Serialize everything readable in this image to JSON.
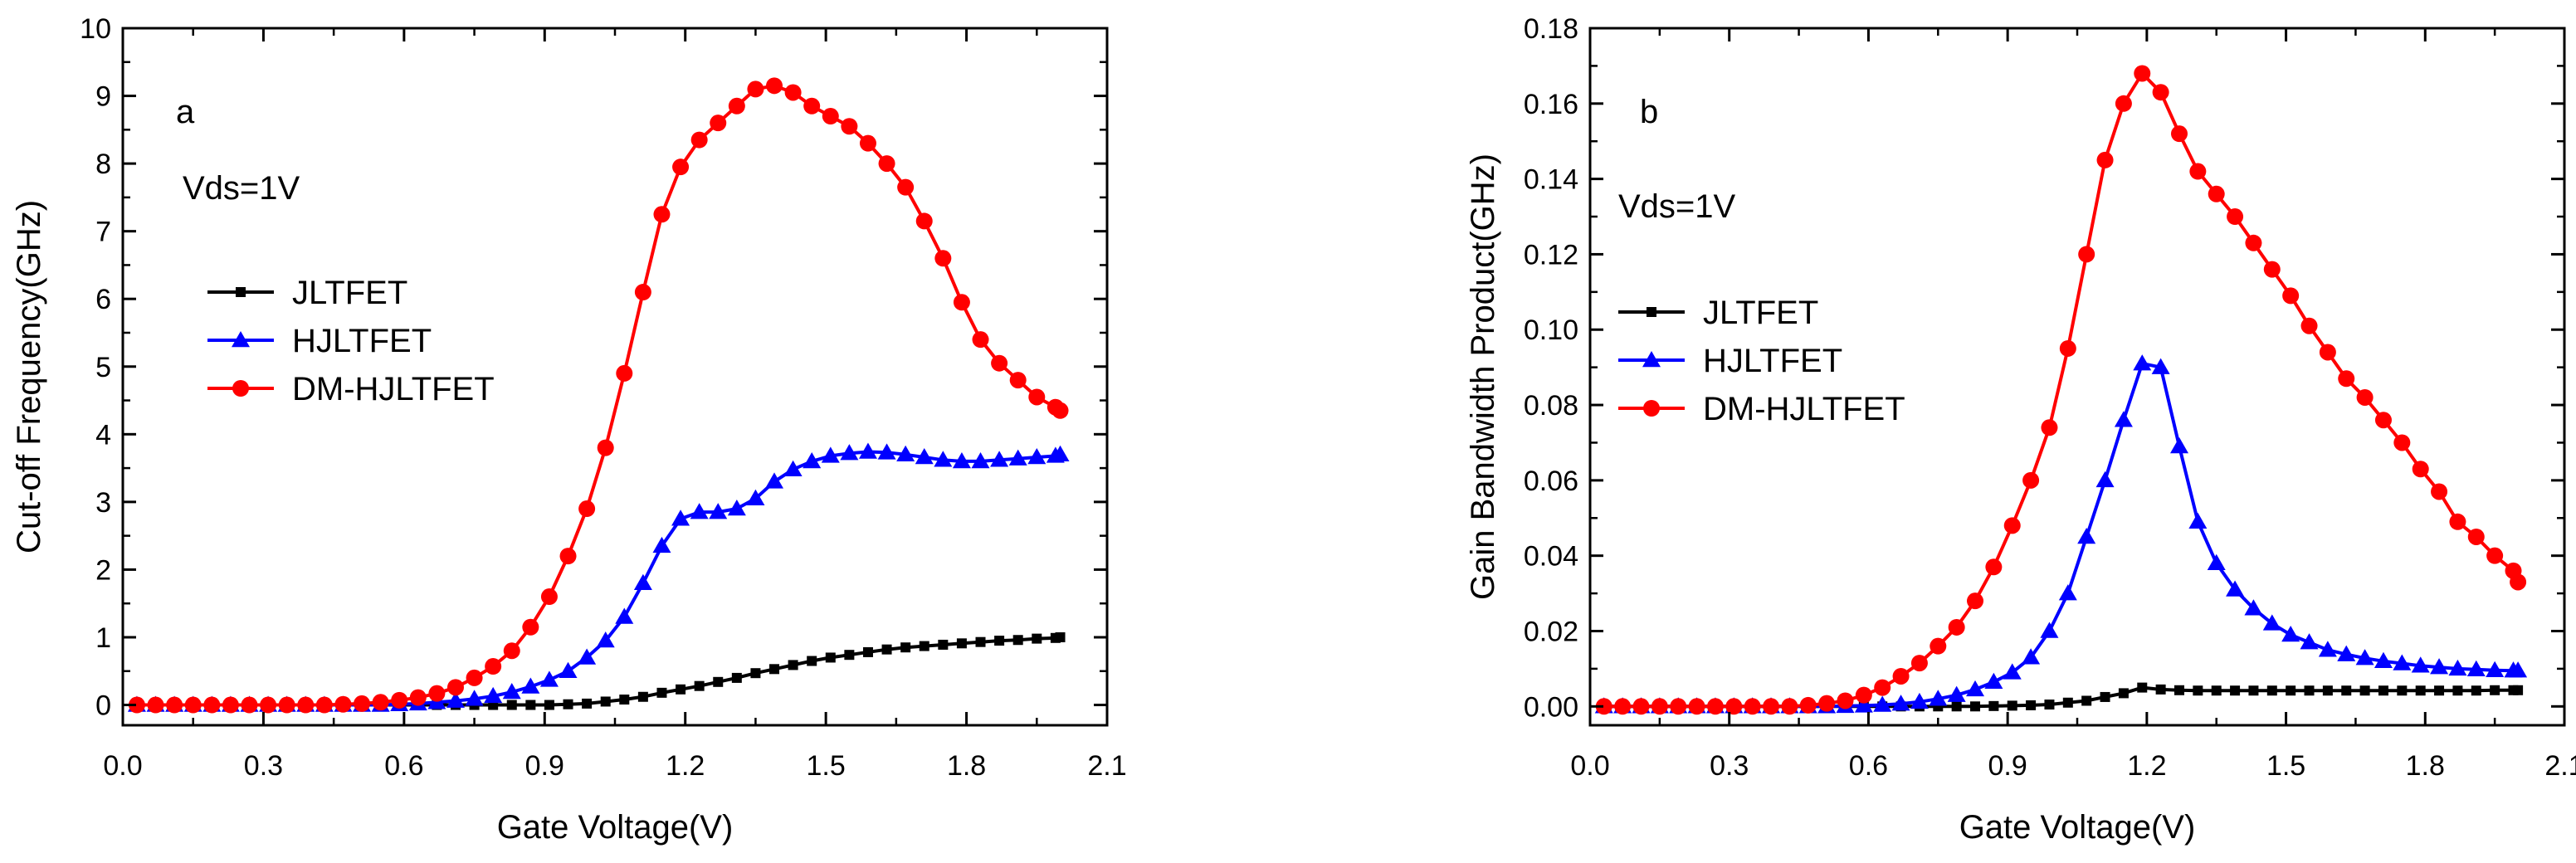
{
  "chart_data": [
    {
      "type": "line",
      "panel_label": "a",
      "annotation": "Vds=1V",
      "xlabel": "Gate Voltage(V)",
      "ylabel": "Cut-off Frequency(GHz)",
      "xlim": [
        0.0,
        2.1
      ],
      "ylim": [
        -0.3,
        10
      ],
      "xticks": [
        "0.0",
        "0.3",
        "0.6",
        "0.9",
        "1.2",
        "1.5",
        "1.8",
        "2.1"
      ],
      "yticks": [
        "0",
        "1",
        "2",
        "3",
        "4",
        "5",
        "6",
        "7",
        "8",
        "9",
        "10"
      ],
      "legend_position": "center-left",
      "series": [
        {
          "name": "JLTFET",
          "color": "#000000",
          "marker": "square",
          "x": [
            0.03,
            0.07,
            0.11,
            0.15,
            0.19,
            0.23,
            0.27,
            0.31,
            0.35,
            0.39,
            0.43,
            0.47,
            0.51,
            0.55,
            0.59,
            0.63,
            0.67,
            0.71,
            0.75,
            0.79,
            0.83,
            0.87,
            0.91,
            0.95,
            0.99,
            1.03,
            1.07,
            1.11,
            1.15,
            1.19,
            1.23,
            1.27,
            1.31,
            1.35,
            1.39,
            1.43,
            1.47,
            1.51,
            1.55,
            1.59,
            1.63,
            1.67,
            1.71,
            1.75,
            1.79,
            1.83,
            1.87,
            1.91,
            1.95,
            1.99,
            2.0
          ],
          "y": [
            0,
            0,
            0,
            0,
            0,
            0,
            0,
            0,
            0,
            0,
            0,
            0,
            0,
            0,
            0,
            0,
            0,
            0,
            0,
            0,
            0,
            0,
            0,
            0.01,
            0.02,
            0.05,
            0.08,
            0.12,
            0.18,
            0.23,
            0.28,
            0.34,
            0.4,
            0.47,
            0.53,
            0.59,
            0.65,
            0.7,
            0.74,
            0.78,
            0.82,
            0.85,
            0.87,
            0.89,
            0.91,
            0.93,
            0.95,
            0.96,
            0.98,
            0.99,
            1.0
          ]
        },
        {
          "name": "HJLTFET",
          "color": "#0000ff",
          "marker": "triangle",
          "x": [
            0.03,
            0.07,
            0.11,
            0.15,
            0.19,
            0.23,
            0.27,
            0.31,
            0.35,
            0.39,
            0.43,
            0.47,
            0.51,
            0.55,
            0.59,
            0.63,
            0.67,
            0.71,
            0.75,
            0.79,
            0.83,
            0.87,
            0.91,
            0.95,
            0.99,
            1.03,
            1.07,
            1.11,
            1.15,
            1.19,
            1.23,
            1.27,
            1.31,
            1.35,
            1.39,
            1.43,
            1.47,
            1.51,
            1.55,
            1.59,
            1.63,
            1.67,
            1.71,
            1.75,
            1.79,
            1.83,
            1.87,
            1.91,
            1.95,
            1.99,
            2.0
          ],
          "y": [
            0,
            0,
            0,
            0,
            0,
            0,
            0,
            0,
            0,
            0,
            0,
            0,
            0,
            0,
            0.01,
            0.02,
            0.04,
            0.06,
            0.09,
            0.13,
            0.19,
            0.27,
            0.37,
            0.5,
            0.7,
            0.95,
            1.3,
            1.8,
            2.35,
            2.75,
            2.85,
            2.85,
            2.9,
            3.05,
            3.3,
            3.48,
            3.6,
            3.68,
            3.72,
            3.74,
            3.73,
            3.7,
            3.66,
            3.62,
            3.6,
            3.6,
            3.62,
            3.64,
            3.66,
            3.68,
            3.7
          ]
        },
        {
          "name": "DM-HJLTFET",
          "color": "#ff0000",
          "marker": "circle",
          "x": [
            0.03,
            0.07,
            0.11,
            0.15,
            0.19,
            0.23,
            0.27,
            0.31,
            0.35,
            0.39,
            0.43,
            0.47,
            0.51,
            0.55,
            0.59,
            0.63,
            0.67,
            0.71,
            0.75,
            0.79,
            0.83,
            0.87,
            0.91,
            0.95,
            0.99,
            1.03,
            1.07,
            1.11,
            1.15,
            1.19,
            1.23,
            1.27,
            1.31,
            1.35,
            1.39,
            1.43,
            1.47,
            1.51,
            1.55,
            1.59,
            1.63,
            1.67,
            1.71,
            1.75,
            1.79,
            1.83,
            1.87,
            1.91,
            1.95,
            1.99,
            2.0
          ],
          "y": [
            0,
            0,
            0,
            0,
            0,
            0,
            0,
            0,
            0,
            0,
            0,
            0.01,
            0.02,
            0.04,
            0.07,
            0.11,
            0.17,
            0.26,
            0.4,
            0.57,
            0.8,
            1.15,
            1.6,
            2.2,
            2.9,
            3.8,
            4.9,
            6.1,
            7.25,
            7.95,
            8.35,
            8.6,
            8.85,
            9.1,
            9.15,
            9.05,
            8.85,
            8.7,
            8.55,
            8.3,
            8.0,
            7.65,
            7.15,
            6.6,
            5.95,
            5.4,
            5.05,
            4.8,
            4.55,
            4.4,
            4.35
          ]
        }
      ]
    },
    {
      "type": "line",
      "panel_label": "b",
      "annotation": "Vds=1V",
      "xlabel": "Gate Voltage(V)",
      "ylabel": "Gain Bandwidth Product(GHz)",
      "xlim": [
        0.0,
        2.1
      ],
      "ylim": [
        -0.005,
        0.18
      ],
      "xticks": [
        "0.0",
        "0.3",
        "0.6",
        "0.9",
        "1.2",
        "1.5",
        "1.8",
        "2.1"
      ],
      "yticks": [
        "0.00",
        "0.02",
        "0.04",
        "0.06",
        "0.08",
        "0.10",
        "0.12",
        "0.14",
        "0.16",
        "0.18"
      ],
      "legend_position": "center-left",
      "series": [
        {
          "name": "JLTFET",
          "color": "#000000",
          "marker": "square",
          "x": [
            0.03,
            0.07,
            0.11,
            0.15,
            0.19,
            0.23,
            0.27,
            0.31,
            0.35,
            0.39,
            0.43,
            0.47,
            0.51,
            0.55,
            0.59,
            0.63,
            0.67,
            0.71,
            0.75,
            0.79,
            0.83,
            0.87,
            0.91,
            0.95,
            0.99,
            1.03,
            1.07,
            1.11,
            1.15,
            1.19,
            1.23,
            1.27,
            1.31,
            1.35,
            1.39,
            1.43,
            1.47,
            1.51,
            1.55,
            1.59,
            1.63,
            1.67,
            1.71,
            1.75,
            1.79,
            1.83,
            1.87,
            1.91,
            1.95,
            1.99,
            2.0
          ],
          "y": [
            0,
            0,
            0,
            0,
            0,
            0,
            0,
            0,
            0,
            0,
            0,
            0,
            0,
            0,
            0,
            0,
            0,
            0,
            0,
            0,
            0,
            0.0001,
            0.0002,
            0.0003,
            0.0005,
            0.001,
            0.0015,
            0.0025,
            0.0035,
            0.005,
            0.0045,
            0.0043,
            0.0042,
            0.0042,
            0.0042,
            0.0042,
            0.0042,
            0.0042,
            0.0042,
            0.0042,
            0.0042,
            0.0042,
            0.0042,
            0.0042,
            0.0042,
            0.0042,
            0.0042,
            0.0042,
            0.0043,
            0.0043,
            0.0043
          ]
        },
        {
          "name": "HJLTFET",
          "color": "#0000ff",
          "marker": "triangle",
          "x": [
            0.03,
            0.07,
            0.11,
            0.15,
            0.19,
            0.23,
            0.27,
            0.31,
            0.35,
            0.39,
            0.43,
            0.47,
            0.51,
            0.55,
            0.59,
            0.63,
            0.67,
            0.71,
            0.75,
            0.79,
            0.83,
            0.87,
            0.91,
            0.95,
            0.99,
            1.03,
            1.07,
            1.11,
            1.15,
            1.19,
            1.23,
            1.27,
            1.31,
            1.35,
            1.39,
            1.43,
            1.47,
            1.51,
            1.55,
            1.59,
            1.63,
            1.67,
            1.71,
            1.75,
            1.79,
            1.83,
            1.87,
            1.91,
            1.95,
            1.99,
            2.0
          ],
          "y": [
            0,
            0,
            0,
            0,
            0,
            0,
            0,
            0,
            0,
            0,
            0,
            0,
            0,
            0.0001,
            0.0002,
            0.0004,
            0.0007,
            0.0012,
            0.002,
            0.003,
            0.0045,
            0.0065,
            0.009,
            0.013,
            0.02,
            0.03,
            0.045,
            0.06,
            0.076,
            0.091,
            0.09,
            0.069,
            0.049,
            0.038,
            0.031,
            0.026,
            0.022,
            0.019,
            0.017,
            0.015,
            0.0138,
            0.0128,
            0.012,
            0.0114,
            0.0108,
            0.0104,
            0.01,
            0.0098,
            0.0096,
            0.0095,
            0.0095
          ]
        },
        {
          "name": "DM-HJLTFET",
          "color": "#ff0000",
          "marker": "circle",
          "x": [
            0.03,
            0.07,
            0.11,
            0.15,
            0.19,
            0.23,
            0.27,
            0.31,
            0.35,
            0.39,
            0.43,
            0.47,
            0.51,
            0.55,
            0.59,
            0.63,
            0.67,
            0.71,
            0.75,
            0.79,
            0.83,
            0.87,
            0.91,
            0.95,
            0.99,
            1.03,
            1.07,
            1.11,
            1.15,
            1.19,
            1.23,
            1.27,
            1.31,
            1.35,
            1.39,
            1.43,
            1.47,
            1.51,
            1.55,
            1.59,
            1.63,
            1.67,
            1.71,
            1.75,
            1.79,
            1.83,
            1.87,
            1.91,
            1.95,
            1.99,
            2.0
          ],
          "y": [
            0,
            0,
            0,
            0,
            0,
            0,
            0,
            0,
            0,
            0,
            0,
            0.0003,
            0.0008,
            0.0015,
            0.003,
            0.005,
            0.008,
            0.0115,
            0.016,
            0.021,
            0.028,
            0.037,
            0.048,
            0.06,
            0.074,
            0.095,
            0.12,
            0.145,
            0.16,
            0.168,
            0.163,
            0.152,
            0.142,
            0.136,
            0.13,
            0.123,
            0.116,
            0.109,
            0.101,
            0.094,
            0.087,
            0.082,
            0.076,
            0.07,
            0.063,
            0.057,
            0.049,
            0.045,
            0.04,
            0.036,
            0.033
          ]
        }
      ]
    }
  ]
}
